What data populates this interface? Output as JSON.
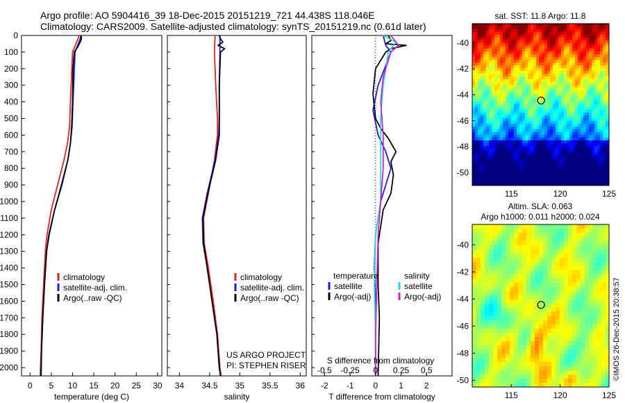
{
  "header": {
    "line1": "Argo profile: AO 5904416_39 18-Dec-2015 20151219_721 44.438S 118.046E",
    "line2": "Climatology: CARS2009. Satellite-adjusted climatology: synTS_20151219.nc (0.61d later)"
  },
  "footer": {
    "project": "US ARGO PROJECT",
    "pi": "PI: STEPHEN RISER",
    "stamp": "©IMOS 26-Dec-2015 20:38:57"
  },
  "colors": {
    "climatology": "#e02020",
    "satellite": "#1a1aee",
    "argo": "#000000",
    "satellite_sal": "#22dddd",
    "argo_sal": "#cc22cc"
  },
  "chart_data": [
    {
      "type": "line",
      "name": "temperature",
      "xlabel": "temperature (deg C)",
      "ylabel": "",
      "xlim": [
        -2,
        31
      ],
      "ylim": [
        2050,
        0
      ],
      "xticks": [
        0,
        5,
        10,
        15,
        20,
        25,
        30
      ],
      "yticks": [
        0,
        100,
        200,
        300,
        400,
        500,
        600,
        700,
        800,
        900,
        1000,
        1100,
        1200,
        1300,
        1400,
        1500,
        1600,
        1700,
        1800,
        1900,
        2000
      ],
      "legend": [
        "climatology",
        "satellite-adj. clim.",
        "Argo(..raw -QC)"
      ],
      "legend_colors": [
        "#e02020",
        "#1a1aee",
        "#000000"
      ],
      "legend_position": "lower-center",
      "series": [
        {
          "color": "#e02020",
          "points": [
            [
              11.5,
              0
            ],
            [
              11.3,
              20
            ],
            [
              10.0,
              100
            ],
            [
              9.5,
              400
            ],
            [
              9.3,
              550
            ],
            [
              8.8,
              650
            ],
            [
              8.0,
              750
            ],
            [
              6.5,
              900
            ],
            [
              5.0,
              1050
            ],
            [
              4.0,
              1200
            ],
            [
              3.6,
              1300
            ],
            [
              3.2,
              1500
            ],
            [
              2.8,
              1700
            ],
            [
              2.6,
              1900
            ],
            [
              2.4,
              2050
            ]
          ]
        },
        {
          "color": "#1a1aee",
          "points": [
            [
              11.9,
              0
            ],
            [
              11.8,
              20
            ],
            [
              10.6,
              100
            ],
            [
              10.1,
              400
            ],
            [
              9.9,
              550
            ],
            [
              9.5,
              650
            ],
            [
              8.9,
              750
            ],
            [
              7.5,
              900
            ],
            [
              5.8,
              1050
            ],
            [
              4.4,
              1200
            ],
            [
              3.9,
              1300
            ],
            [
              3.4,
              1500
            ],
            [
              3.0,
              1700
            ],
            [
              2.7,
              1900
            ],
            [
              2.5,
              2050
            ]
          ]
        },
        {
          "color": "#000000",
          "points": [
            [
              12.0,
              0
            ],
            [
              12.1,
              20
            ],
            [
              11.8,
              40
            ],
            [
              11.2,
              70
            ],
            [
              10.4,
              100
            ],
            [
              10.1,
              200
            ],
            [
              10.0,
              400
            ],
            [
              9.8,
              550
            ],
            [
              9.5,
              650
            ],
            [
              8.9,
              750
            ],
            [
              7.4,
              900
            ],
            [
              5.8,
              1050
            ],
            [
              4.5,
              1200
            ],
            [
              3.9,
              1300
            ],
            [
              3.4,
              1500
            ],
            [
              3.0,
              1700
            ],
            [
              2.7,
              1900
            ],
            [
              2.6,
              2050
            ]
          ]
        }
      ]
    },
    {
      "type": "line",
      "name": "salinity",
      "xlabel": "salinity",
      "ylabel": "",
      "xlim": [
        33.8,
        36.1
      ],
      "ylim": [
        2050,
        0
      ],
      "xticks": [
        34,
        34.5,
        35,
        35.5,
        36
      ],
      "legend": [
        "climatology",
        "satellite-adj. clim.",
        "Argo(..raw -QC)"
      ],
      "legend_colors": [
        "#e02020",
        "#1a1aee",
        "#000000"
      ],
      "legend_position": "lower-center",
      "series": [
        {
          "color": "#e02020",
          "points": [
            [
              34.59,
              0
            ],
            [
              34.58,
              100
            ],
            [
              34.6,
              300
            ],
            [
              34.63,
              500
            ],
            [
              34.63,
              600
            ],
            [
              34.58,
              750
            ],
            [
              34.48,
              950
            ],
            [
              34.4,
              1100
            ],
            [
              34.41,
              1250
            ],
            [
              34.48,
              1400
            ],
            [
              34.56,
              1600
            ],
            [
              34.63,
              1800
            ],
            [
              34.67,
              2000
            ],
            [
              34.69,
              2050
            ]
          ]
        },
        {
          "color": "#1a1aee",
          "points": [
            [
              34.67,
              0
            ],
            [
              34.67,
              100
            ],
            [
              34.66,
              300
            ],
            [
              34.66,
              500
            ],
            [
              34.65,
              600
            ],
            [
              34.59,
              750
            ],
            [
              34.46,
              950
            ],
            [
              34.38,
              1100
            ],
            [
              34.39,
              1250
            ],
            [
              34.46,
              1400
            ],
            [
              34.54,
              1600
            ],
            [
              34.62,
              1800
            ],
            [
              34.66,
              2000
            ],
            [
              34.68,
              2050
            ]
          ]
        },
        {
          "color": "#000000",
          "points": [
            [
              34.66,
              0
            ],
            [
              34.68,
              20
            ],
            [
              34.72,
              40
            ],
            [
              34.64,
              60
            ],
            [
              34.75,
              80
            ],
            [
              34.68,
              100
            ],
            [
              34.66,
              300
            ],
            [
              34.66,
              500
            ],
            [
              34.66,
              600
            ],
            [
              34.6,
              750
            ],
            [
              34.47,
              950
            ],
            [
              34.39,
              1100
            ],
            [
              34.4,
              1250
            ],
            [
              34.46,
              1400
            ],
            [
              34.54,
              1600
            ],
            [
              34.62,
              1800
            ],
            [
              34.66,
              2000
            ],
            [
              34.68,
              2050
            ]
          ]
        }
      ]
    },
    {
      "type": "line",
      "name": "difference",
      "xlabel": "T difference from climatology",
      "xlabel2": "S difference from climatology",
      "xlim": [
        -2.5,
        3.0
      ],
      "xticks": [
        -2,
        -1,
        0,
        1,
        2
      ],
      "xtick_labels": [
        "-2",
        "-1",
        "0",
        "1",
        "2"
      ],
      "top_ticks": [
        -0.5,
        -0.25,
        0,
        0.25,
        0.5
      ],
      "top_tick_labels": [
        "-0.5",
        "-0.25",
        "0",
        "0.25",
        "0.5"
      ],
      "ylim": [
        2050,
        0
      ],
      "legend_headers": [
        "temperature",
        "salinity"
      ],
      "legend": [
        "satellite",
        "Argo(-adj)",
        "satellite",
        "Argo(-adj)"
      ],
      "legend_colors": [
        "#1a1aee",
        "#000000",
        "#22dddd",
        "#cc22cc"
      ],
      "series": [
        {
          "color": "#1a1aee",
          "points": [
            [
              0.3,
              0
            ],
            [
              0.4,
              60
            ],
            [
              0.6,
              100
            ],
            [
              0.1,
              300
            ],
            [
              -0.1,
              450
            ],
            [
              0.1,
              600
            ],
            [
              0.4,
              700
            ],
            [
              0.6,
              800
            ],
            [
              0.4,
              900
            ],
            [
              0.2,
              1000
            ],
            [
              0.1,
              1100
            ],
            [
              0.0,
              1200
            ],
            [
              -0.05,
              1400
            ],
            [
              0.0,
              1600
            ],
            [
              0.0,
              2050
            ]
          ]
        },
        {
          "color": "#000000",
          "points": [
            [
              0.5,
              0
            ],
            [
              0.6,
              30
            ],
            [
              0.4,
              50
            ],
            [
              1.2,
              60
            ],
            [
              0.6,
              80
            ],
            [
              0.4,
              100
            ],
            [
              0.0,
              200
            ],
            [
              -0.1,
              350
            ],
            [
              0.0,
              500
            ],
            [
              0.2,
              560
            ],
            [
              0.5,
              620
            ],
            [
              0.8,
              700
            ],
            [
              0.6,
              760
            ],
            [
              0.7,
              840
            ],
            [
              0.6,
              950
            ],
            [
              0.3,
              1050
            ],
            [
              0.2,
              1150
            ],
            [
              0.1,
              1250
            ],
            [
              0.1,
              1500
            ],
            [
              0.15,
              1700
            ],
            [
              0.1,
              2050
            ]
          ]
        },
        {
          "color": "#22dddd",
          "points": [
            [
              0.3,
              0
            ],
            [
              0.8,
              40
            ],
            [
              0.5,
              100
            ],
            [
              0.3,
              300
            ],
            [
              0.2,
              500
            ],
            [
              0.2,
              700
            ],
            [
              0.2,
              1000
            ],
            [
              0.0,
              1200
            ],
            [
              -0.05,
              1500
            ],
            [
              0.0,
              1800
            ],
            [
              0.0,
              2050
            ]
          ]
        },
        {
          "color": "#cc22cc",
          "points": [
            [
              0.6,
              0
            ],
            [
              0.9,
              60
            ],
            [
              0.6,
              100
            ],
            [
              0.3,
              250
            ],
            [
              0.2,
              400
            ],
            [
              0.3,
              600
            ],
            [
              0.3,
              800
            ],
            [
              0.2,
              1000
            ],
            [
              0.1,
              1200
            ],
            [
              0.05,
              1500
            ],
            [
              0.0,
              1800
            ],
            [
              0.0,
              2050
            ]
          ]
        }
      ]
    },
    {
      "type": "heatmap",
      "name": "sst-map",
      "title": "sat. SST: 11.8 Argo: 11.8",
      "xlim": [
        111,
        125
      ],
      "ylim": [
        -51,
        -38.5
      ],
      "xticks": [
        115,
        120,
        125
      ],
      "yticks": [
        -40,
        -42,
        -44,
        -46,
        -48,
        -50
      ],
      "marker": [
        118.046,
        -44.438
      ],
      "colormap": "jet"
    },
    {
      "type": "heatmap",
      "name": "sla-map",
      "title": "Altim. SLA: 0.063",
      "subtitle": "Argo h1000: 0.011 h2000: 0.024",
      "xlim": [
        111,
        125
      ],
      "ylim": [
        -50.5,
        -38.5
      ],
      "xticks": [
        115,
        120,
        125
      ],
      "yticks": [
        -40,
        -42,
        -44,
        -46,
        -48,
        -50
      ],
      "marker": [
        118.046,
        -44.438
      ],
      "colormap": "jet"
    }
  ]
}
